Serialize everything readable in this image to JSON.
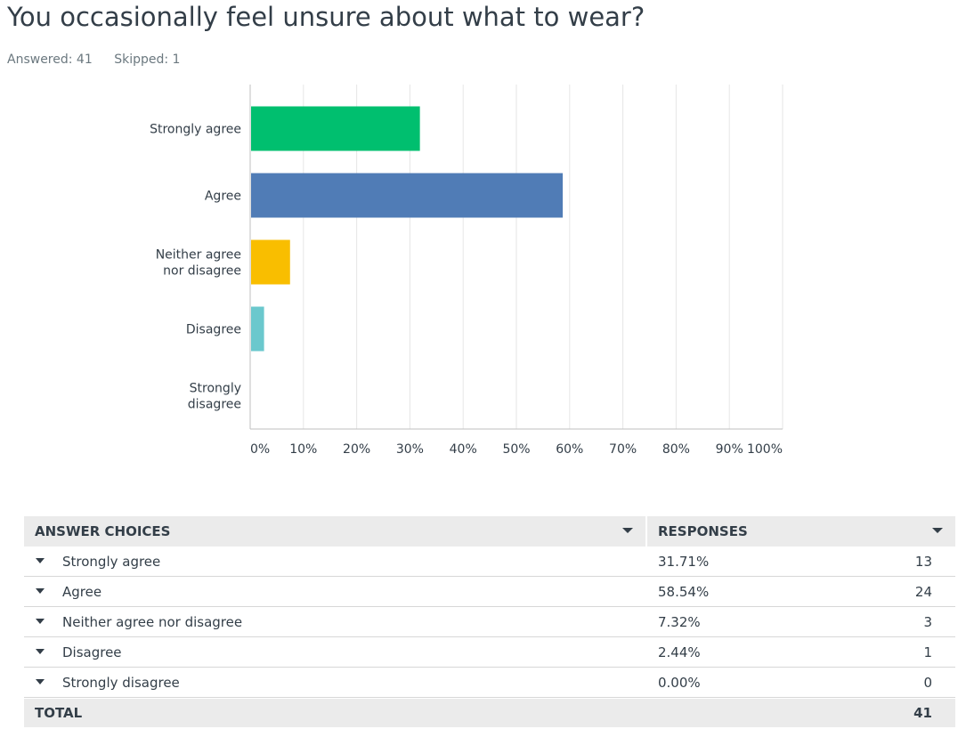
{
  "question": {
    "title": "You occasionally feel unsure about what to wear?",
    "answered": "Answered: 41",
    "skipped": "Skipped: 1"
  },
  "chart_data": {
    "type": "bar",
    "orientation": "horizontal",
    "categories": [
      [
        "Strongly agree"
      ],
      [
        "Agree"
      ],
      [
        "Neither agree",
        "nor disagree"
      ],
      [
        "Disagree"
      ],
      [
        "Strongly",
        "disagree"
      ]
    ],
    "values": [
      31.71,
      58.54,
      7.32,
      2.44,
      0.0
    ],
    "colors": [
      "#00bf6f",
      "#507cb6",
      "#f9be00",
      "#6bc8cd",
      "#ff8b4f"
    ],
    "xlim": [
      0,
      100
    ],
    "ticks": [
      "0%",
      "10%",
      "20%",
      "30%",
      "40%",
      "50%",
      "60%",
      "70%",
      "80%",
      "90%",
      "100%"
    ],
    "grid": true
  },
  "table": {
    "headers": {
      "choices": "ANSWER CHOICES",
      "responses": "RESPONSES"
    },
    "rows": [
      {
        "label": "Strongly agree",
        "pct": "31.71%",
        "count": "13"
      },
      {
        "label": "Agree",
        "pct": "58.54%",
        "count": "24"
      },
      {
        "label": "Neither agree nor disagree",
        "pct": "7.32%",
        "count": "3"
      },
      {
        "label": "Disagree",
        "pct": "2.44%",
        "count": "1"
      },
      {
        "label": "Strongly disagree",
        "pct": "0.00%",
        "count": "0"
      }
    ],
    "total_label": "TOTAL",
    "total_count": "41"
  }
}
